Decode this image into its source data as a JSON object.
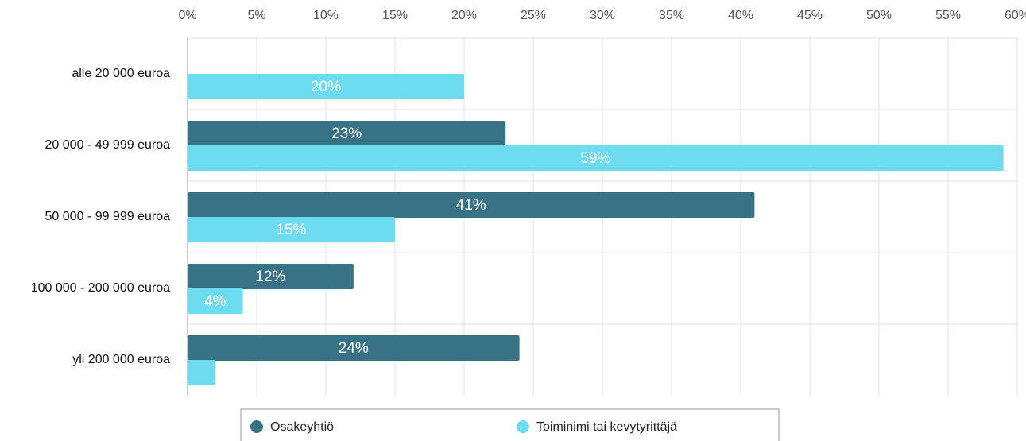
{
  "chart_data": {
    "type": "bar",
    "orientation": "horizontal",
    "categories": [
      "alle 20 000 euroa",
      "20 000 - 49 999 euroa",
      "50 000 - 99 999 euroa",
      "100 000 - 200 000 euroa",
      "yli 200 000 euroa"
    ],
    "series": [
      {
        "name": "Osakeyhtiö",
        "color": "#387285",
        "values": [
          0,
          23,
          41,
          12,
          24
        ],
        "value_labels": [
          null,
          "23%",
          "41%",
          "12%",
          "24%"
        ]
      },
      {
        "name": "Toiminimi tai kevytyrittäjä",
        "color": "#6ddcf0",
        "values": [
          20,
          59,
          15,
          4,
          2
        ],
        "value_labels": [
          "20%",
          "59%",
          "15%",
          "4%",
          null
        ]
      }
    ],
    "xlim": [
      0,
      60
    ],
    "xticks": [
      {
        "value": 0,
        "label": "0%"
      },
      {
        "value": 5,
        "label": "5%"
      },
      {
        "value": 10,
        "label": "10%"
      },
      {
        "value": 15,
        "label": "15%"
      },
      {
        "value": 20,
        "label": "20%"
      },
      {
        "value": 25,
        "label": "25%"
      },
      {
        "value": 30,
        "label": "30%"
      },
      {
        "value": 35,
        "label": "35%"
      },
      {
        "value": 40,
        "label": "40%"
      },
      {
        "value": 45,
        "label": "45%"
      },
      {
        "value": 50,
        "label": "50%"
      },
      {
        "value": 55,
        "label": "55%"
      },
      {
        "value": 60,
        "label": "60%"
      }
    ],
    "grid": true,
    "legend": "bottom"
  }
}
